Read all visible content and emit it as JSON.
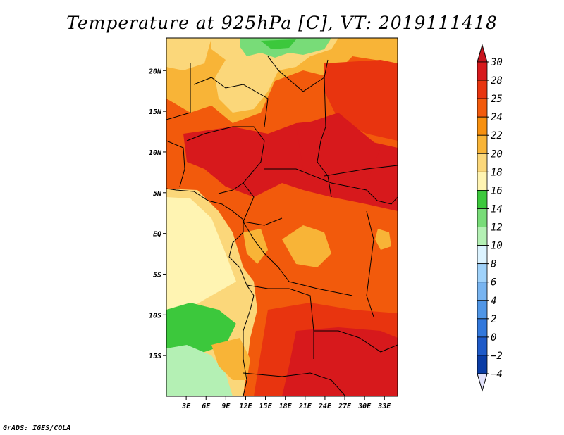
{
  "title": "Temperature at 925hPa [C], VT: 2019111418",
  "credit": "GrADS: IGES/COLA",
  "map": {
    "lon_range": [
      0,
      35
    ],
    "lat_range": [
      -20,
      24
    ],
    "lon_ticks": [
      {
        "value": 3,
        "label": "3E"
      },
      {
        "value": 6,
        "label": "6E"
      },
      {
        "value": 9,
        "label": "9E"
      },
      {
        "value": 12,
        "label": "12E"
      },
      {
        "value": 15,
        "label": "15E"
      },
      {
        "value": 18,
        "label": "18E"
      },
      {
        "value": 21,
        "label": "21E"
      },
      {
        "value": 24,
        "label": "24E"
      },
      {
        "value": 27,
        "label": "27E"
      },
      {
        "value": 30,
        "label": "30E"
      },
      {
        "value": 33,
        "label": "33E"
      }
    ],
    "lat_ticks": [
      {
        "value": 20,
        "label": "20N"
      },
      {
        "value": 15,
        "label": "15N"
      },
      {
        "value": 10,
        "label": "10N"
      },
      {
        "value": 5,
        "label": "5N"
      },
      {
        "value": 0,
        "label": "EQ"
      },
      {
        "value": -5,
        "label": "5S"
      },
      {
        "value": -10,
        "label": "10S"
      },
      {
        "value": -15,
        "label": "15S"
      }
    ]
  },
  "colorbar": {
    "levels": [
      {
        "label": "30",
        "color": "#d7191c"
      },
      {
        "label": "28",
        "color": "#e8340f"
      },
      {
        "label": "25",
        "color": "#f25a0c"
      },
      {
        "label": "24",
        "color": "#f7900f"
      },
      {
        "label": "22",
        "color": "#f8b437"
      },
      {
        "label": "20",
        "color": "#fbd77a"
      },
      {
        "label": "18",
        "color": "#fff4b2"
      },
      {
        "label": "16",
        "color": "#3cc83c"
      },
      {
        "label": "14",
        "color": "#78dc78"
      },
      {
        "label": "12",
        "color": "#b4f0b4"
      },
      {
        "label": "10",
        "color": "#dcf3ff"
      },
      {
        "label": "8",
        "color": "#a0d2fa"
      },
      {
        "label": "6",
        "color": "#78b4f0"
      },
      {
        "label": "4",
        "color": "#5096e6"
      },
      {
        "label": "2",
        "color": "#3278dc"
      },
      {
        "label": "0",
        "color": "#1e5ac8"
      },
      {
        "label": "−2",
        "color": "#0a3ca5"
      },
      {
        "label": "−4",
        "color": "#0a1e78"
      }
    ],
    "top_color": "#c8141e",
    "bottom_color": "#e1e1fa"
  }
}
